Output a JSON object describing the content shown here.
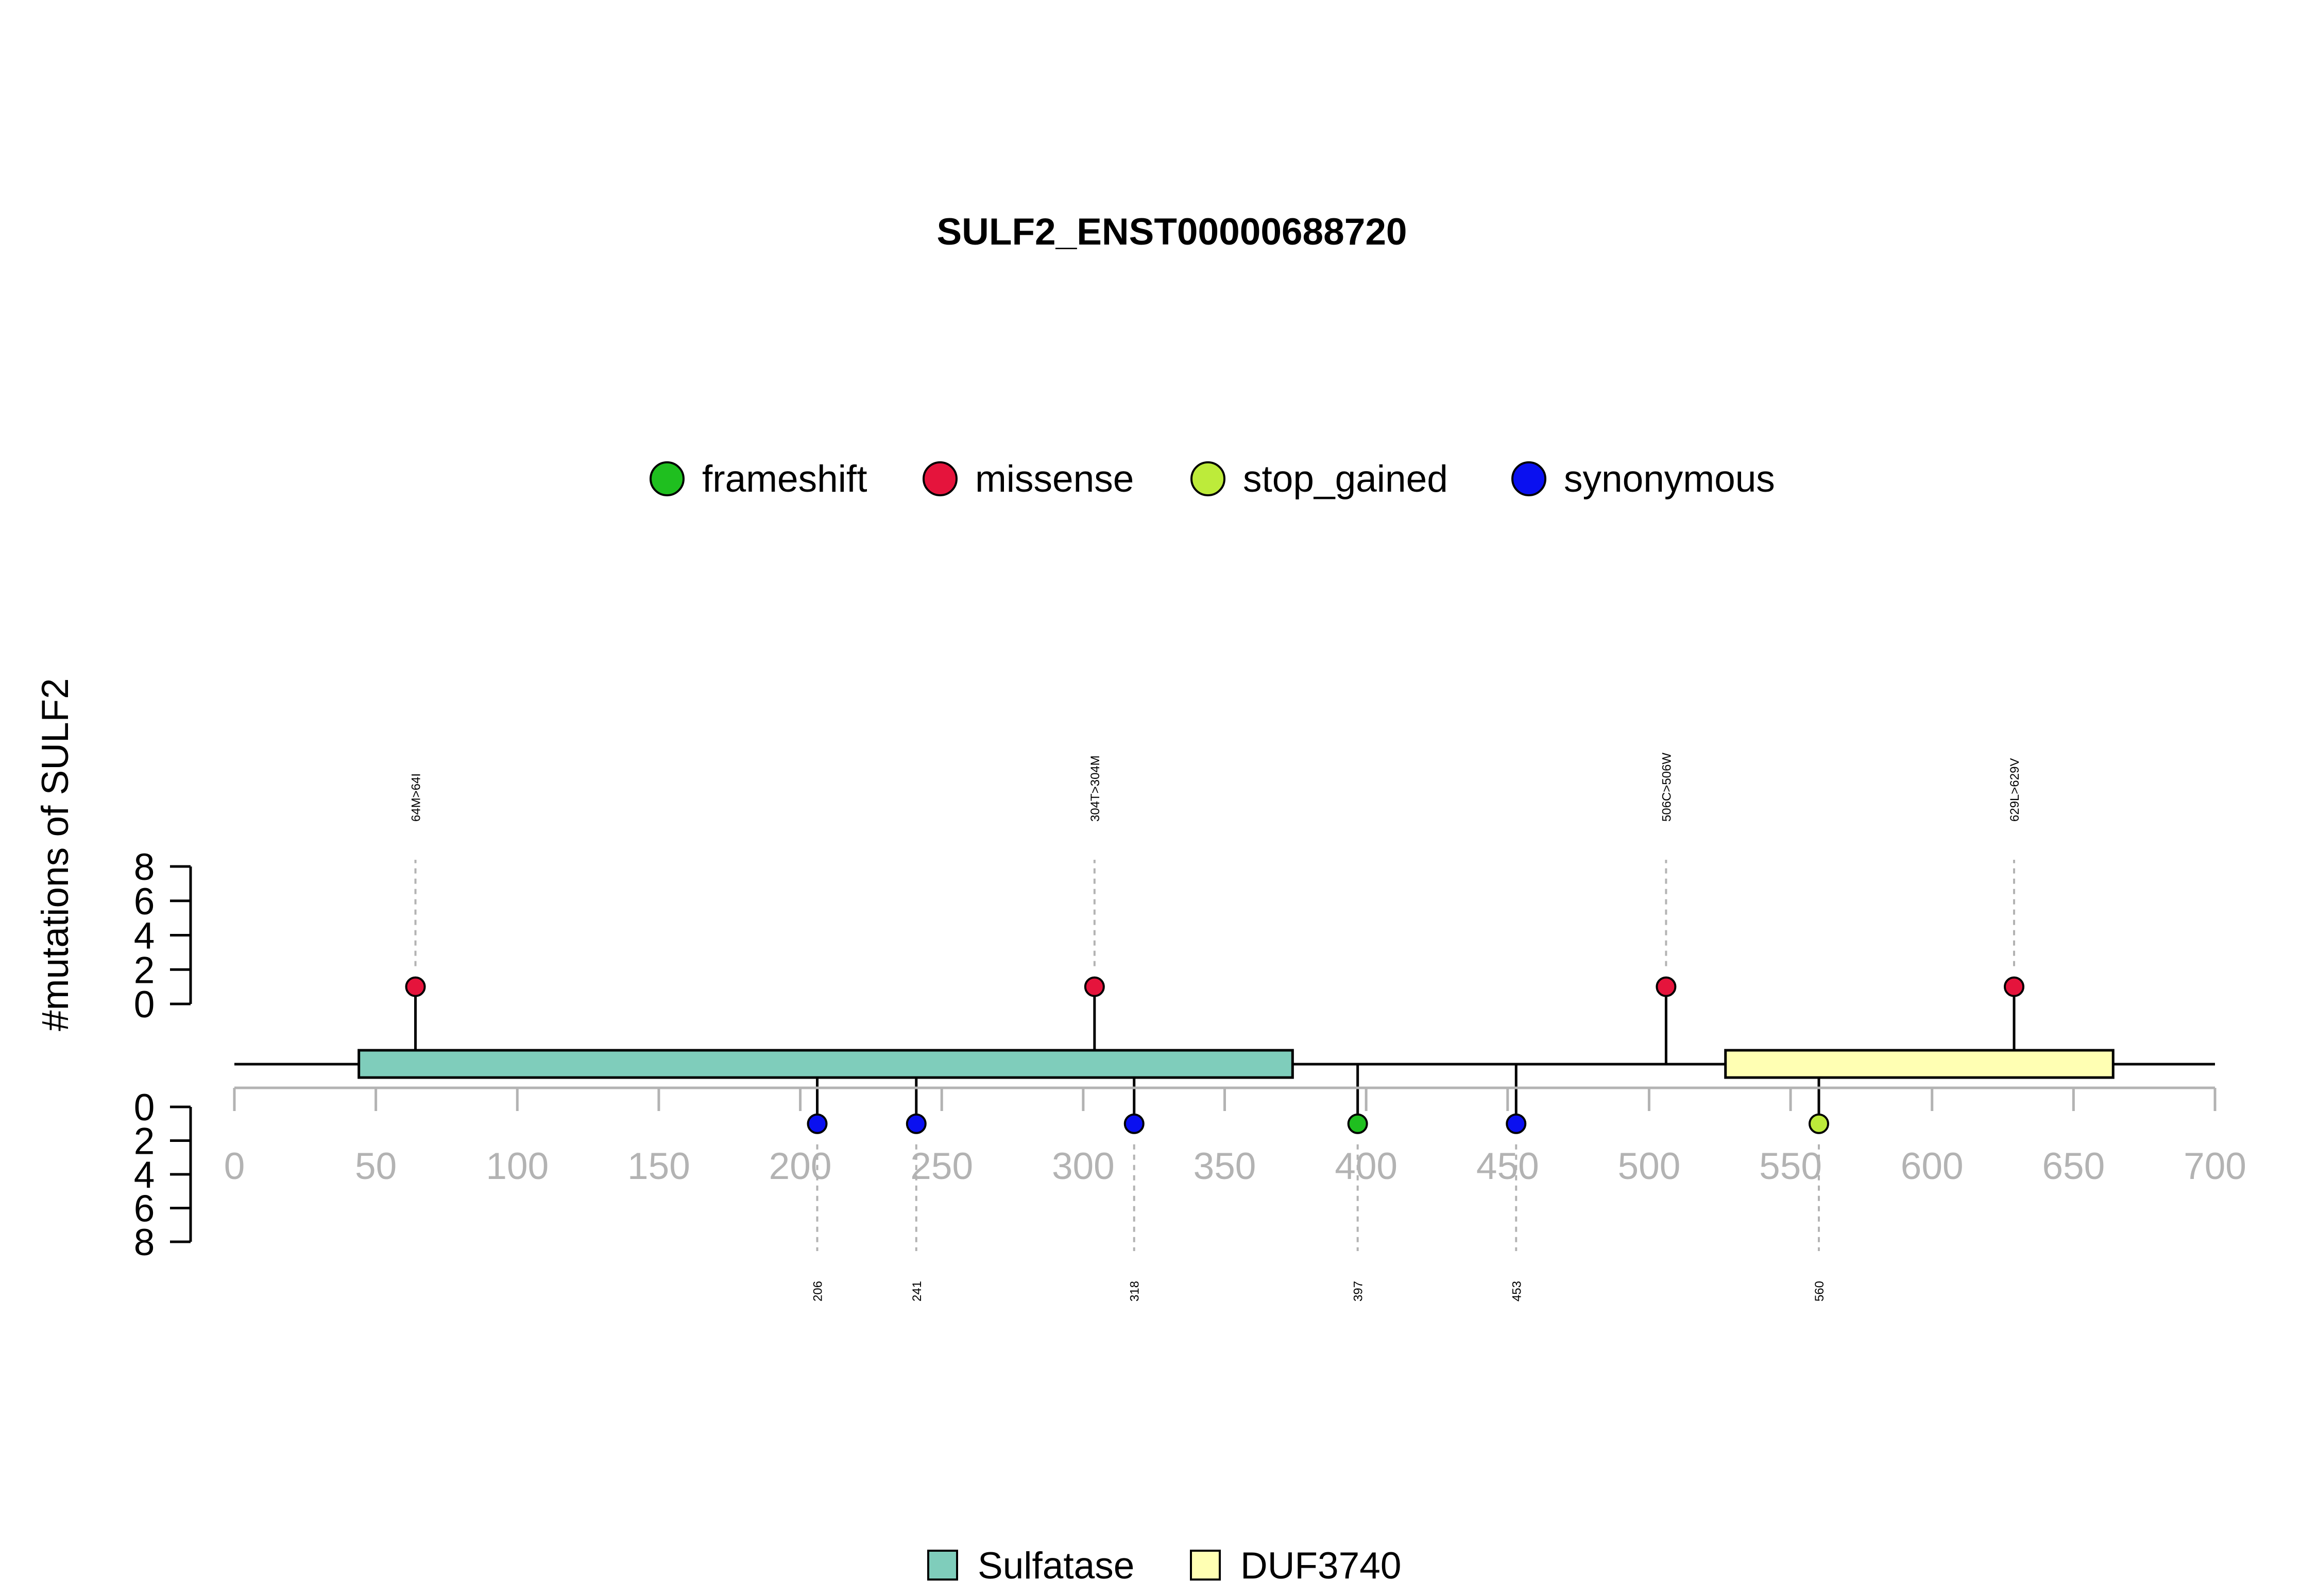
{
  "chart_data": {
    "type": "lollipop",
    "title": "SULF2_ENST00000688720",
    "ylabel": "#mutations of SULF2",
    "xlim": [
      0,
      700
    ],
    "x_ticks": [
      0,
      50,
      100,
      150,
      200,
      250,
      300,
      350,
      400,
      450,
      500,
      550,
      600,
      650,
      700
    ],
    "y_ticks": [
      0,
      2,
      4,
      6,
      8
    ],
    "ylim": [
      0,
      8
    ],
    "protein_length": 700,
    "mutation_legend": [
      {
        "name": "frameshift",
        "color": "#1FBF1F"
      },
      {
        "name": "missense",
        "color": "#E5143C"
      },
      {
        "name": "stop_gained",
        "color": "#BDEB3A"
      },
      {
        "name": "synonymous",
        "color": "#0A10F0"
      }
    ],
    "domains": [
      {
        "name": "Sulfatase",
        "start": 44,
        "end": 374,
        "color": "#7FCDBB"
      },
      {
        "name": "DUF3740",
        "start": 527,
        "end": 664,
        "color": "#FFFFB3"
      }
    ],
    "mutations_top": [
      {
        "position": 64,
        "count": 1,
        "type": "missense",
        "label": "64M>64I"
      },
      {
        "position": 304,
        "count": 1,
        "type": "missense",
        "label": "304T>304M"
      },
      {
        "position": 506,
        "count": 1,
        "type": "missense",
        "label": "506C>506W"
      },
      {
        "position": 629,
        "count": 1,
        "type": "missense",
        "label": "629L>629V"
      }
    ],
    "mutations_bottom": [
      {
        "position": 206,
        "count": 1,
        "type": "synonymous",
        "label": "206"
      },
      {
        "position": 241,
        "count": 1,
        "type": "synonymous",
        "label": "241"
      },
      {
        "position": 318,
        "count": 1,
        "type": "synonymous",
        "label": "318"
      },
      {
        "position": 397,
        "count": 1,
        "type": "frameshift",
        "label": "397"
      },
      {
        "position": 453,
        "count": 1,
        "type": "synonymous",
        "label": "453"
      },
      {
        "position": 560,
        "count": 1,
        "type": "stop_gained",
        "label": "560"
      }
    ]
  }
}
